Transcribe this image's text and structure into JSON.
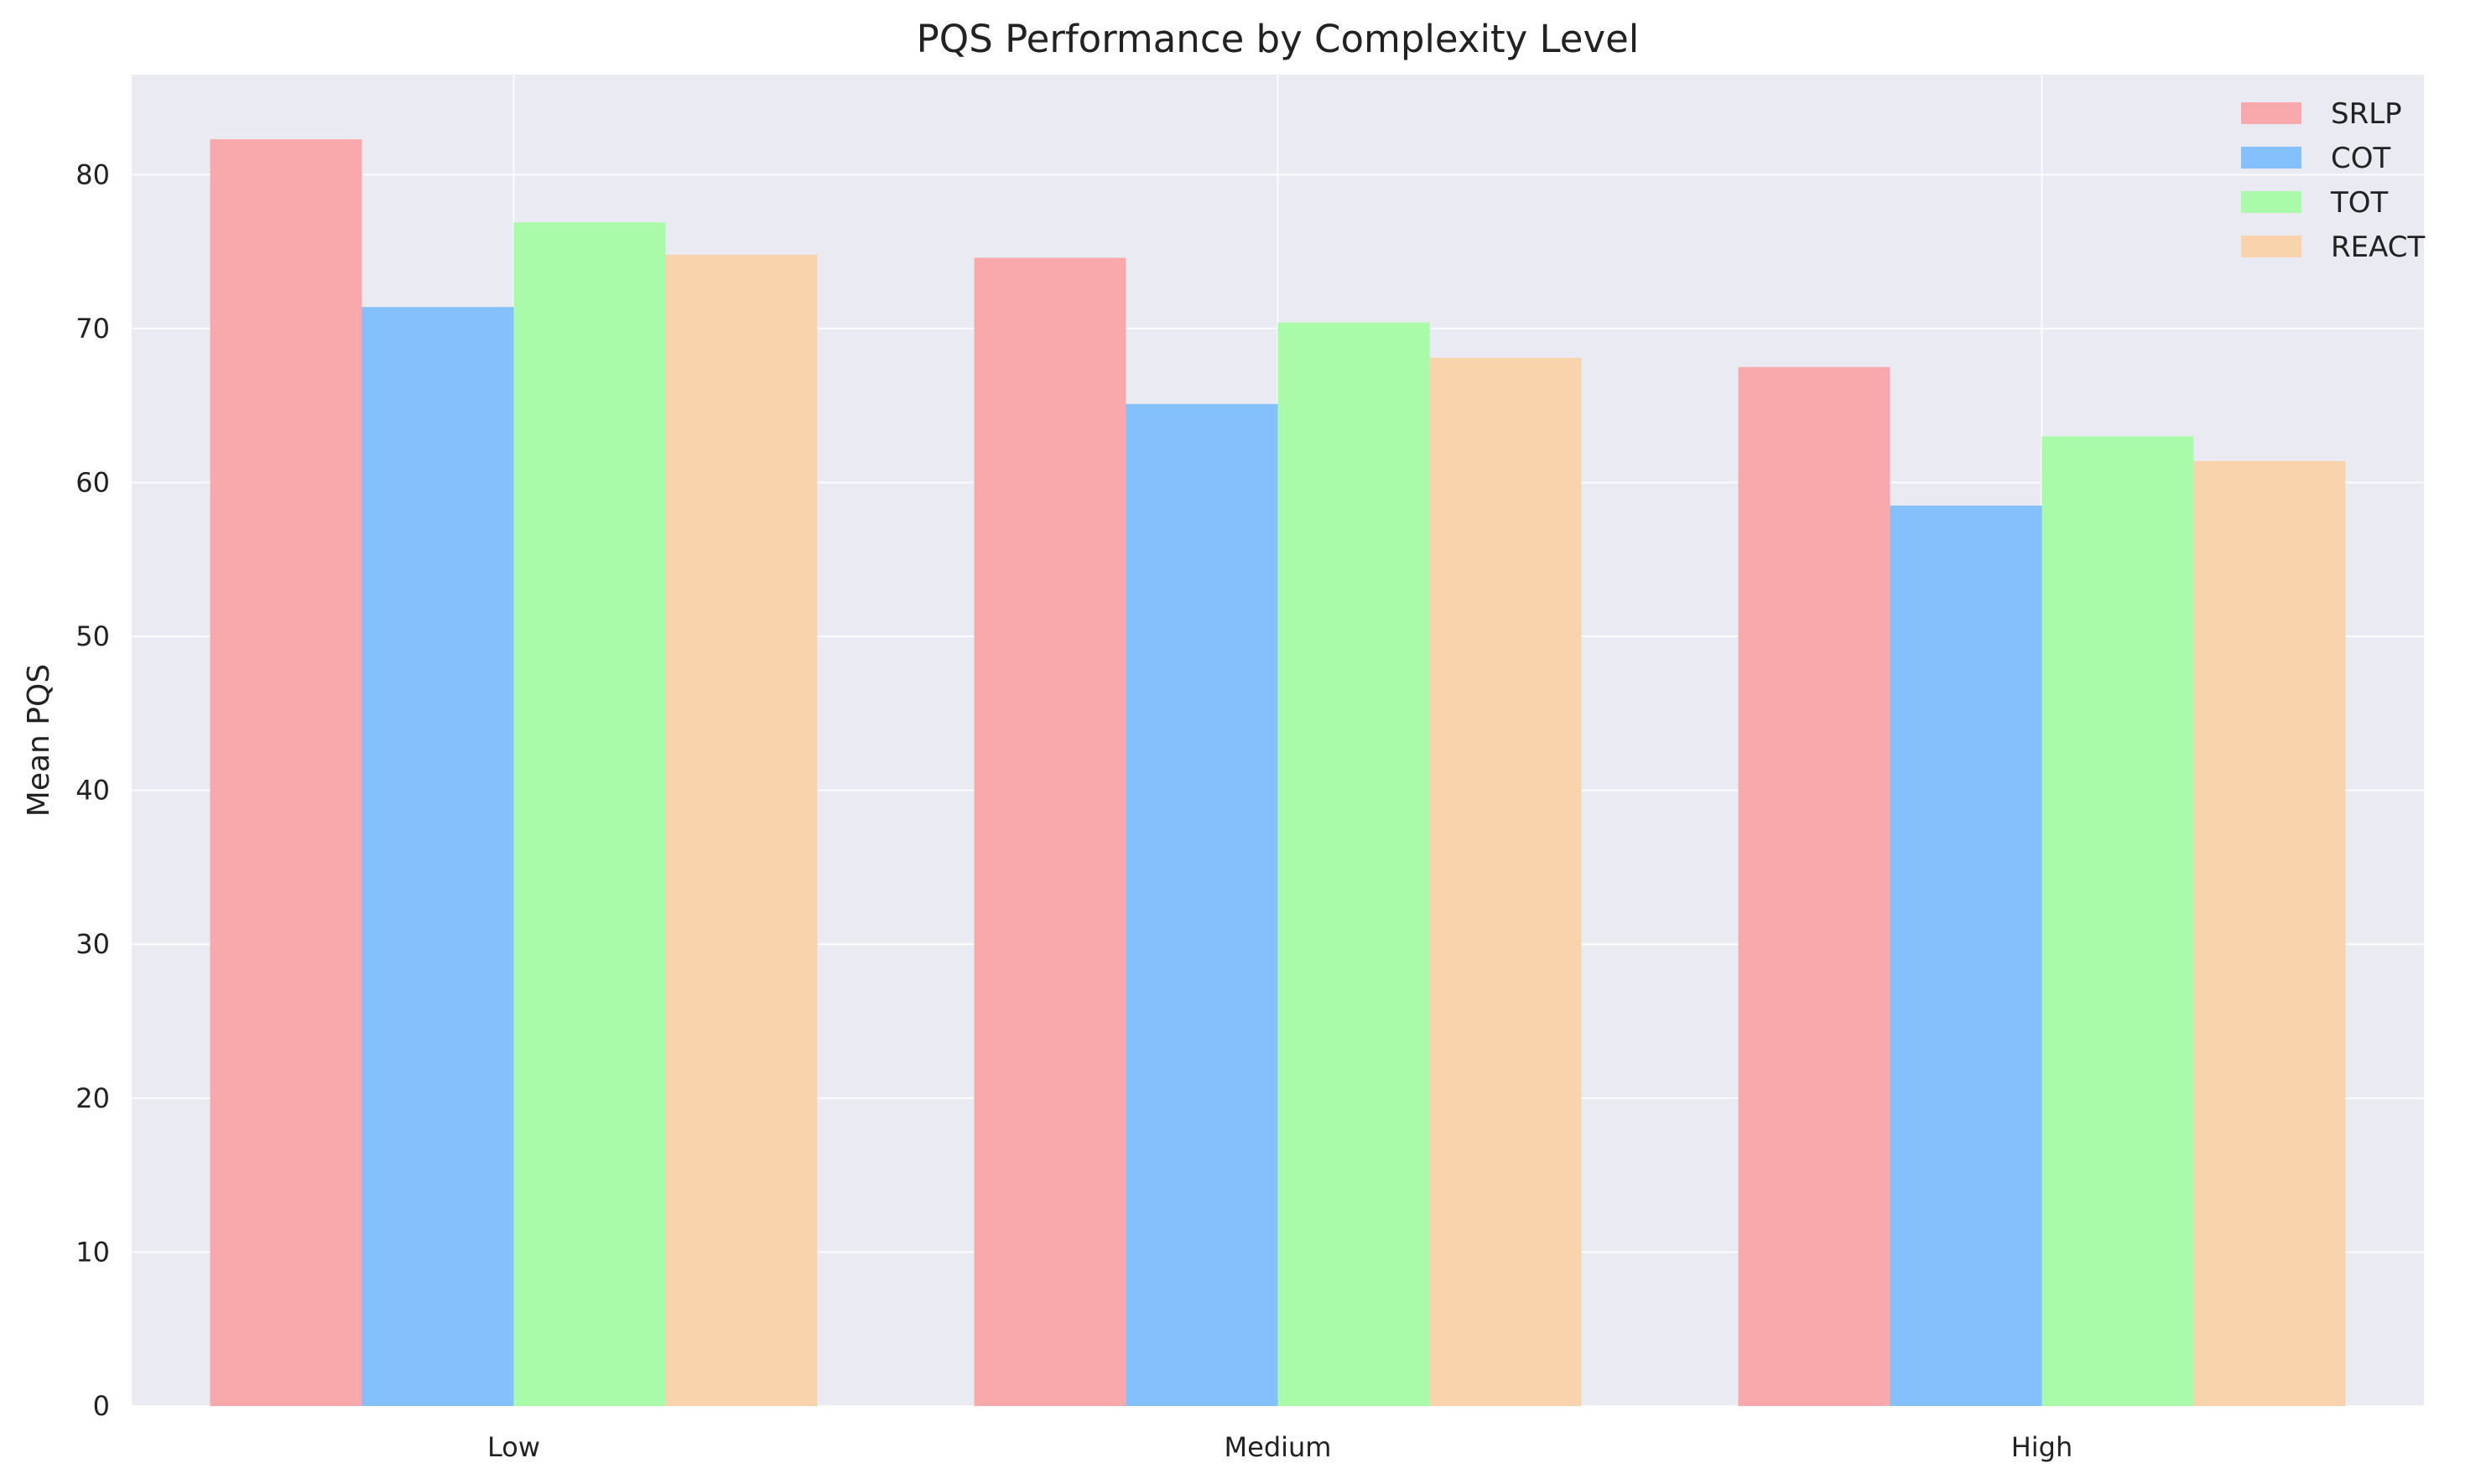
{
  "chart_data": {
    "type": "bar",
    "title": "PQS Performance by Complexity Level",
    "xlabel": "",
    "ylabel": "Mean PQS",
    "ylim": [
      0,
      86.5
    ],
    "yticks": [
      0,
      10,
      20,
      30,
      40,
      50,
      60,
      70,
      80
    ],
    "grid": true,
    "legend_position": "top-right",
    "background_color": "#e9eaf2",
    "categories": [
      "Low",
      "Medium",
      "High"
    ],
    "series": [
      {
        "name": "SRLP",
        "color": "#f9a9ab",
        "values": [
          82.3,
          74.6,
          67.5
        ]
      },
      {
        "name": "COT",
        "color": "#84c0fb",
        "values": [
          71.4,
          65.1,
          58.5
        ]
      },
      {
        "name": "TOT",
        "color": "#a9faa9",
        "values": [
          76.9,
          70.4,
          63.0
        ]
      },
      {
        "name": "REACT",
        "color": "#f9d3ab",
        "values": [
          74.8,
          68.1,
          61.4
        ]
      }
    ]
  }
}
